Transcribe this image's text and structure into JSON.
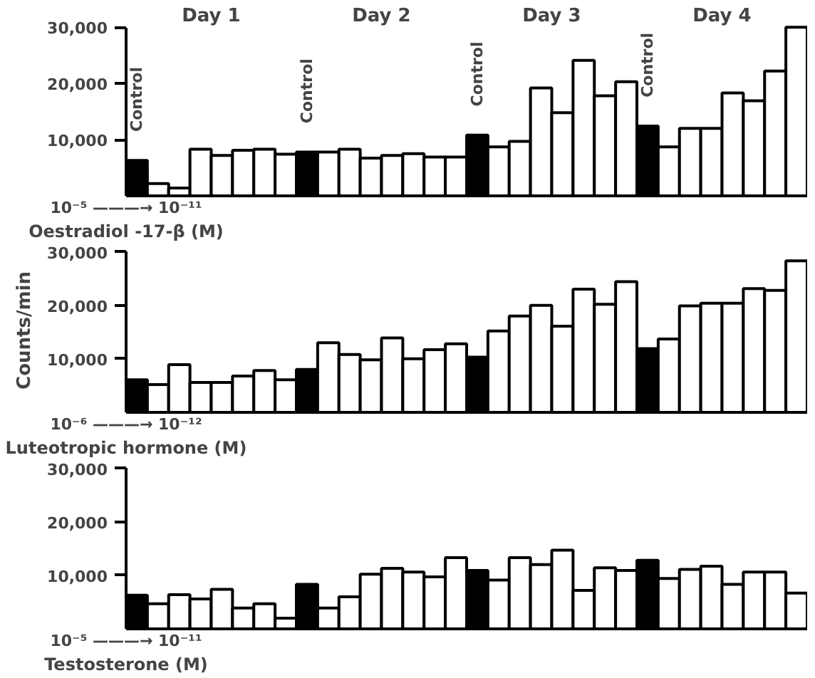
{
  "chart_data": [
    {
      "type": "bar",
      "stacked": true,
      "xlabel": "Oestradiol -17-β (M)",
      "categories": [
        null,
        null,
        null,
        null,
        null,
        null,
        null,
        null,
        null,
        null,
        null,
        null,
        null,
        null,
        null,
        null,
        null,
        null,
        null,
        null,
        null,
        null,
        null,
        null,
        null,
        null,
        null,
        null,
        null,
        null,
        null,
        null
      ],
      "tick_labels": "y",
      "series": [
        {
          "name": "Control",
          "color": "#000000",
          "values": [
            6300,
            null,
            null,
            null,
            null,
            null,
            null,
            null,
            7800,
            null,
            null,
            null,
            null,
            null,
            null,
            null,
            10800,
            null,
            null,
            null,
            null,
            null,
            null,
            null,
            12400,
            null,
            null,
            null,
            null,
            null,
            null,
            null
          ]
        },
        {
          "color": "#ffffff",
          "values": [
            null,
            2200,
            1400,
            8300,
            7200,
            8100,
            8300,
            7400,
            null,
            7800,
            8300,
            6700,
            7200,
            7500,
            6900,
            6900,
            null,
            8700,
            9700,
            19200,
            14800,
            24100,
            17800,
            20300,
            null,
            8700,
            12000,
            12000,
            18300,
            16900,
            22200,
            30000
          ]
        }
      ],
      "ylim": [
        0,
        30000
      ],
      "yticks": [
        {
          "value": 10000,
          "label": "10,000"
        },
        {
          "value": 20000,
          "label": "20,000"
        },
        {
          "value": 30000,
          "label": "30,000"
        }
      ],
      "grid": false,
      "annotations": [
        {
          "text": "Day 1"
        },
        {
          "text": "Day 2"
        },
        {
          "text": "Day 3"
        },
        {
          "text": "Day 4"
        },
        "10⁻⁵ ———→ 10⁻¹¹"
      ]
    },
    {
      "type": "bar",
      "stacked": true,
      "xlabel": "Luteotropic hormone (M)",
      "ylabel": "Counts/min",
      "categories": [
        null,
        null,
        null,
        null,
        null,
        null,
        null,
        null,
        null,
        null,
        null,
        null,
        null,
        null,
        null,
        null,
        null,
        null,
        null,
        null,
        null,
        null,
        null,
        null,
        null,
        null,
        null,
        null,
        null,
        null,
        null,
        null
      ],
      "tick_labels": "y",
      "series": [
        {
          "color": "#000000",
          "values": [
            6100,
            null,
            null,
            null,
            null,
            null,
            null,
            null,
            8000,
            null,
            null,
            null,
            null,
            null,
            null,
            null,
            10300,
            null,
            null,
            null,
            null,
            null,
            null,
            null,
            11900,
            null,
            null,
            null,
            null,
            null,
            null,
            null
          ]
        },
        {
          "color": "#ffffff",
          "values": [
            null,
            5200,
            8900,
            5600,
            5600,
            6800,
            7800,
            6100,
            null,
            13000,
            10800,
            9800,
            13900,
            10000,
            11700,
            12800,
            null,
            15200,
            18000,
            20000,
            16100,
            23000,
            20200,
            24400,
            null,
            13700,
            19900,
            20400,
            20400,
            23100,
            22800,
            28300
          ]
        }
      ],
      "ylim": [
        0,
        30000
      ],
      "yticks": [
        {
          "value": 10000,
          "label": "10,000"
        },
        {
          "value": 20000,
          "label": "20,000"
        },
        {
          "value": 30000,
          "label": "30,000"
        }
      ],
      "grid": false,
      "annotations": [
        "10⁻⁶ ———→ 10⁻¹²"
      ]
    },
    {
      "type": "bar",
      "stacked": true,
      "xlabel": "Testosterone (M)",
      "categories": [
        null,
        null,
        null,
        null,
        null,
        null,
        null,
        null,
        null,
        null,
        null,
        null,
        null,
        null,
        null,
        null,
        null,
        null,
        null,
        null,
        null,
        null,
        null,
        null,
        null,
        null,
        null,
        null,
        null,
        null,
        null,
        null
      ],
      "tick_labels": "y",
      "series": [
        {
          "color": "#000000",
          "values": [
            6300,
            null,
            null,
            null,
            null,
            null,
            null,
            null,
            8300,
            null,
            null,
            null,
            null,
            null,
            null,
            null,
            10900,
            null,
            null,
            null,
            null,
            null,
            null,
            null,
            12800,
            null,
            null,
            null,
            null,
            null,
            null,
            null
          ]
        },
        {
          "color": "#ffffff",
          "values": [
            null,
            4700,
            6400,
            5600,
            7400,
            3900,
            4700,
            2000,
            null,
            3900,
            6000,
            10200,
            11300,
            10600,
            9700,
            13300,
            null,
            9100,
            13300,
            12000,
            14700,
            7200,
            11400,
            10900,
            null,
            9400,
            11100,
            11700,
            8300,
            10600,
            10600,
            6700
          ]
        }
      ],
      "ylim": [
        0,
        30000
      ],
      "yticks": [
        {
          "value": 10000,
          "label": "10,000"
        },
        {
          "value": 20000,
          "label": "20,000"
        },
        {
          "value": 30000,
          "label": "30,000"
        }
      ],
      "grid": false,
      "annotations": [
        "10⁻⁵ ———→ 10⁻¹¹"
      ]
    }
  ]
}
